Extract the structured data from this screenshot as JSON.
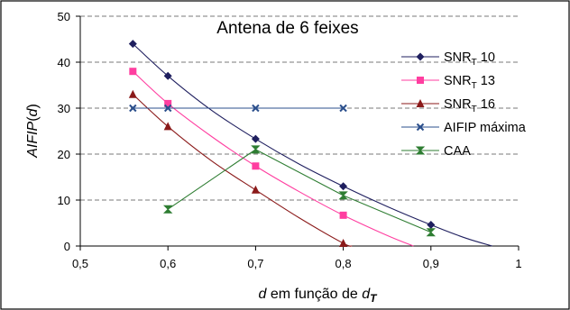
{
  "chart_data": {
    "type": "line",
    "title": "Antena de 6 feixes",
    "xlabel": {
      "main": "d",
      "middle": " em função de ",
      "italic": "d",
      "subscript": "T"
    },
    "ylabel": {
      "prefix": "AIFIP",
      "open": "(",
      "arg": "d",
      "close": ")"
    },
    "xlim": [
      0.5,
      1
    ],
    "ylim": [
      0,
      50
    ],
    "x_ticks": [
      "0,5",
      "0,6",
      "0,7",
      "0,8",
      "0,9",
      "1"
    ],
    "x_tick_values": [
      0.5,
      0.6,
      0.7,
      0.8,
      0.9,
      1.0
    ],
    "y_ticks": [
      "0",
      "10",
      "20",
      "30",
      "40",
      "50"
    ],
    "y_tick_values": [
      0,
      10,
      20,
      30,
      40,
      50
    ],
    "grid": "horizontal",
    "legend_position": "right",
    "series": [
      {
        "name": "SNR",
        "name_sub": "T",
        "name_suffix": " 10",
        "color": "#1f1f5f",
        "marker": "diamond",
        "points": [
          [
            0.56,
            44
          ],
          [
            0.6,
            37
          ],
          [
            0.7,
            23.3
          ],
          [
            0.8,
            13
          ],
          [
            0.9,
            4.6
          ]
        ],
        "curve": [
          [
            0.56,
            44
          ],
          [
            0.6,
            37
          ],
          [
            0.65,
            29.5
          ],
          [
            0.7,
            23.3
          ],
          [
            0.75,
            17.8
          ],
          [
            0.8,
            13
          ],
          [
            0.85,
            8.6
          ],
          [
            0.9,
            4.6
          ],
          [
            0.94,
            1.7
          ],
          [
            0.97,
            0
          ]
        ]
      },
      {
        "name": "SNR",
        "name_sub": "T",
        "name_suffix": " 13",
        "color": "#ff3ea0",
        "marker": "square",
        "points": [
          [
            0.56,
            38
          ],
          [
            0.6,
            31
          ],
          [
            0.7,
            17.4
          ],
          [
            0.8,
            6.7
          ]
        ],
        "curve": [
          [
            0.56,
            38
          ],
          [
            0.6,
            31
          ],
          [
            0.65,
            23.8
          ],
          [
            0.7,
            17.4
          ],
          [
            0.75,
            11.8
          ],
          [
            0.8,
            6.7
          ],
          [
            0.85,
            2.3
          ],
          [
            0.88,
            0
          ]
        ]
      },
      {
        "name": "SNR",
        "name_sub": "T",
        "name_suffix": " 16",
        "color": "#8b1a1a",
        "marker": "triangle",
        "points": [
          [
            0.56,
            33
          ],
          [
            0.6,
            26
          ],
          [
            0.7,
            12.2
          ],
          [
            0.8,
            0.6
          ]
        ],
        "curve": [
          [
            0.56,
            33
          ],
          [
            0.6,
            26
          ],
          [
            0.65,
            18.5
          ],
          [
            0.7,
            12.2
          ],
          [
            0.75,
            6.1
          ],
          [
            0.8,
            0.6
          ],
          [
            0.81,
            0
          ]
        ]
      },
      {
        "name": "AIFIP máxima",
        "name_sub": "",
        "name_suffix": "",
        "color": "#2b4f8c",
        "marker": "x",
        "points": [
          [
            0.56,
            30
          ],
          [
            0.6,
            30
          ],
          [
            0.7,
            30
          ],
          [
            0.8,
            30
          ]
        ],
        "curve": [
          [
            0.56,
            30
          ],
          [
            0.6,
            30
          ],
          [
            0.7,
            30
          ],
          [
            0.8,
            30
          ]
        ]
      },
      {
        "name": "CAA",
        "name_sub": "",
        "name_suffix": "",
        "color": "#2e7d32",
        "marker": "hourglass",
        "points": [
          [
            0.6,
            8
          ],
          [
            0.7,
            21
          ],
          [
            0.8,
            11
          ],
          [
            0.9,
            3
          ]
        ],
        "curve": [
          [
            0.6,
            8
          ],
          [
            0.7,
            21
          ],
          [
            0.8,
            11
          ],
          [
            0.9,
            3
          ]
        ]
      }
    ]
  }
}
